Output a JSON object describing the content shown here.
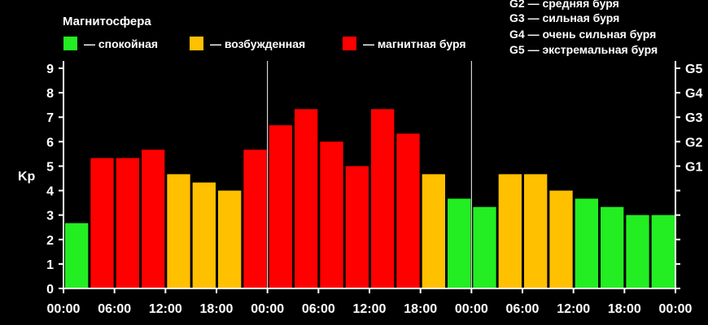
{
  "legend": {
    "title": "Магнитосфера",
    "items": [
      {
        "label": "— спокойная",
        "color": "#22ee22"
      },
      {
        "label": "— возбужденная",
        "color": "#ffc000"
      },
      {
        "label": "— магнитная буря",
        "color": "#ff0000"
      }
    ]
  },
  "g_legend": [
    "G2 — средняя буря",
    "G3 — сильная буря",
    "G4 — очень сильная буря",
    "G5 — экстремальная буря"
  ],
  "chart_data": {
    "type": "bar",
    "ylabel": "Kp",
    "ylim": [
      0,
      9.3
    ],
    "yticks": [
      "0",
      "1",
      "2",
      "3",
      "4",
      "5",
      "6",
      "7",
      "8",
      "9"
    ],
    "right_ticks": [
      {
        "value": 5,
        "label": "G1"
      },
      {
        "value": 6,
        "label": "G2"
      },
      {
        "value": 7,
        "label": "G3"
      },
      {
        "value": 8,
        "label": "G4"
      },
      {
        "value": 9,
        "label": "G5"
      }
    ],
    "xtick_labels": [
      "00:00",
      "06:00",
      "12:00",
      "18:00",
      "00:00",
      "06:00",
      "12:00",
      "18:00",
      "00:00",
      "06:00",
      "12:00",
      "18:00",
      "00:00"
    ],
    "values": [
      2.67,
      5.33,
      5.33,
      5.67,
      4.67,
      4.33,
      4.0,
      5.67,
      6.67,
      7.33,
      6.0,
      5.0,
      7.33,
      6.33,
      4.67,
      3.67,
      3.33,
      4.67,
      4.67,
      4.0,
      3.67,
      3.33,
      3.0,
      3.0
    ],
    "level": [
      "quiet",
      "storm",
      "storm",
      "storm",
      "active",
      "active",
      "active",
      "storm",
      "storm",
      "storm",
      "storm",
      "storm",
      "storm",
      "storm",
      "active",
      "quiet",
      "quiet",
      "active",
      "active",
      "active",
      "quiet",
      "quiet",
      "quiet",
      "quiet"
    ],
    "colors": {
      "quiet": "#22ee22",
      "active": "#ffc000",
      "storm": "#ff0000"
    },
    "grid": false,
    "day_separators": true
  }
}
